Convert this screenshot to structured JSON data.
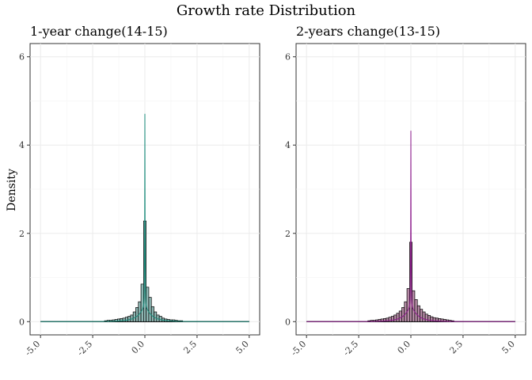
{
  "figure": {
    "title": "Growth rate Distribution",
    "ylabel": "Density"
  },
  "chart_data": [
    {
      "type": "histogram+density",
      "title": "1-year change(14-15)",
      "xlim": [
        -5.5,
        5.5
      ],
      "ylim": [
        -0.3,
        6.3
      ],
      "x_ticks": [
        -5.0,
        -2.5,
        0.0,
        2.5,
        5.0
      ],
      "x_tick_labels": [
        "-5.0",
        "-2.5",
        "0.0",
        "2.5",
        "5.0"
      ],
      "y_ticks": [
        0,
        2,
        4,
        6
      ],
      "y_tick_labels": [
        "0",
        "2",
        "4",
        "6"
      ],
      "grid": true,
      "bin_width": 0.125,
      "bins": [
        {
          "x": -1.875,
          "density": 0.02
        },
        {
          "x": -1.75,
          "density": 0.03
        },
        {
          "x": -1.625,
          "density": 0.03
        },
        {
          "x": -1.5,
          "density": 0.04
        },
        {
          "x": -1.375,
          "density": 0.05
        },
        {
          "x": -1.25,
          "density": 0.06
        },
        {
          "x": -1.125,
          "density": 0.07
        },
        {
          "x": -1.0,
          "density": 0.08
        },
        {
          "x": -0.875,
          "density": 0.1
        },
        {
          "x": -0.75,
          "density": 0.12
        },
        {
          "x": -0.625,
          "density": 0.15
        },
        {
          "x": -0.5,
          "density": 0.22
        },
        {
          "x": -0.375,
          "density": 0.32
        },
        {
          "x": -0.25,
          "density": 0.45
        },
        {
          "x": -0.125,
          "density": 0.85
        },
        {
          "x": 0.0,
          "density": 2.28
        },
        {
          "x": 0.125,
          "density": 0.78
        },
        {
          "x": 0.25,
          "density": 0.55
        },
        {
          "x": 0.375,
          "density": 0.34
        },
        {
          "x": 0.5,
          "density": 0.22
        },
        {
          "x": 0.625,
          "density": 0.15
        },
        {
          "x": 0.75,
          "density": 0.12
        },
        {
          "x": 0.875,
          "density": 0.08
        },
        {
          "x": 1.0,
          "density": 0.06
        },
        {
          "x": 1.125,
          "density": 0.05
        },
        {
          "x": 1.25,
          "density": 0.04
        },
        {
          "x": 1.375,
          "density": 0.04
        },
        {
          "x": 1.5,
          "density": 0.03
        },
        {
          "x": 1.625,
          "density": 0.02
        },
        {
          "x": 1.75,
          "density": 0.02
        }
      ],
      "density_peak": 5.05,
      "bar_fill": "#8fb8b4",
      "line_color": "#1a8a7a"
    },
    {
      "type": "histogram+density",
      "title": "2-years change(13-15)",
      "xlim": [
        -5.5,
        5.5
      ],
      "ylim": [
        -0.3,
        6.3
      ],
      "x_ticks": [
        -5.0,
        -2.5,
        0.0,
        2.5,
        5.0
      ],
      "x_tick_labels": [
        "-5.0",
        "-2.5",
        "0.0",
        "2.5",
        "5.0"
      ],
      "y_ticks": [
        0,
        2,
        4,
        6
      ],
      "y_tick_labels": [
        "0",
        "2",
        "4",
        "6"
      ],
      "grid": true,
      "bin_width": 0.125,
      "bins": [
        {
          "x": -2.0,
          "density": 0.02
        },
        {
          "x": -1.875,
          "density": 0.03
        },
        {
          "x": -1.75,
          "density": 0.03
        },
        {
          "x": -1.625,
          "density": 0.04
        },
        {
          "x": -1.5,
          "density": 0.05
        },
        {
          "x": -1.375,
          "density": 0.06
        },
        {
          "x": -1.25,
          "density": 0.07
        },
        {
          "x": -1.125,
          "density": 0.08
        },
        {
          "x": -1.0,
          "density": 0.1
        },
        {
          "x": -0.875,
          "density": 0.12
        },
        {
          "x": -0.75,
          "density": 0.15
        },
        {
          "x": -0.625,
          "density": 0.19
        },
        {
          "x": -0.5,
          "density": 0.24
        },
        {
          "x": -0.375,
          "density": 0.32
        },
        {
          "x": -0.25,
          "density": 0.45
        },
        {
          "x": -0.125,
          "density": 0.75
        },
        {
          "x": 0.0,
          "density": 1.8
        },
        {
          "x": 0.125,
          "density": 0.7
        },
        {
          "x": 0.25,
          "density": 0.5
        },
        {
          "x": 0.375,
          "density": 0.36
        },
        {
          "x": 0.5,
          "density": 0.28
        },
        {
          "x": 0.625,
          "density": 0.22
        },
        {
          "x": 0.75,
          "density": 0.17
        },
        {
          "x": 0.875,
          "density": 0.14
        },
        {
          "x": 1.0,
          "density": 0.11
        },
        {
          "x": 1.125,
          "density": 0.09
        },
        {
          "x": 1.25,
          "density": 0.08
        },
        {
          "x": 1.375,
          "density": 0.07
        },
        {
          "x": 1.5,
          "density": 0.06
        },
        {
          "x": 1.625,
          "density": 0.05
        },
        {
          "x": 1.75,
          "density": 0.04
        },
        {
          "x": 1.875,
          "density": 0.03
        },
        {
          "x": 2.0,
          "density": 0.02
        }
      ],
      "density_peak": 4.6,
      "bar_fill": "#b58aa5",
      "line_color": "#8b1a8b"
    }
  ]
}
